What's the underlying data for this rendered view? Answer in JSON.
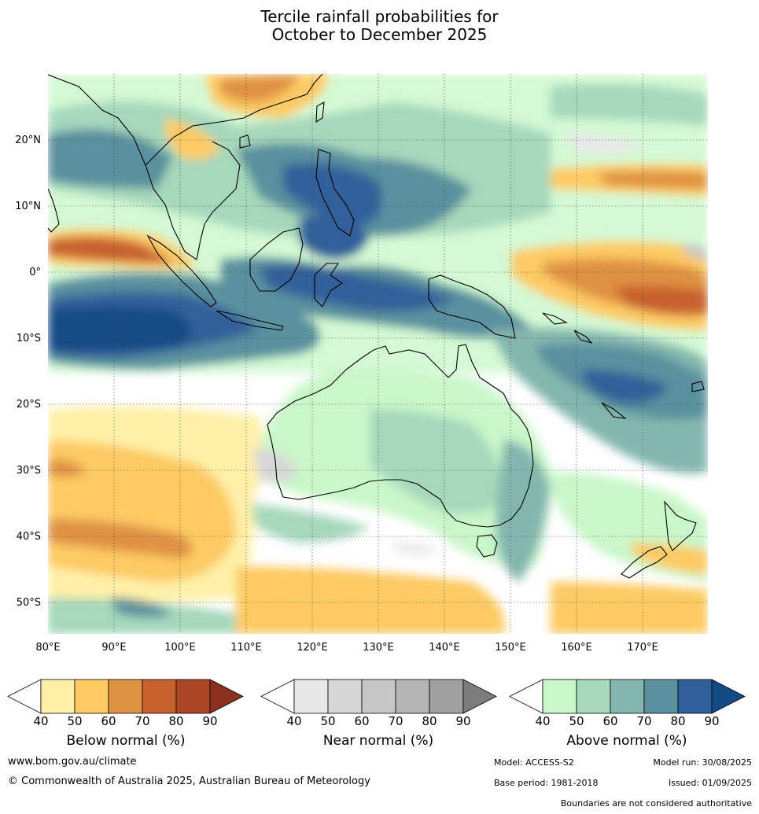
{
  "title_line1": "Tercile rainfall probabilities for",
  "title_line2": "October to December 2025",
  "lat_labels": [
    "20°N",
    "10°N",
    "0°",
    "10°S",
    "20°S",
    "30°S",
    "40°S",
    "50°S"
  ],
  "lon_labels": [
    "80°E",
    "90°E",
    "100°E",
    "110°E",
    "120°E",
    "130°E",
    "140°E",
    "150°E",
    "160°E",
    "170°E"
  ],
  "colorbars": [
    {
      "label": "Below normal (%)",
      "ticks": [
        "40",
        "50",
        "60",
        "70",
        "80",
        "90"
      ],
      "colors": [
        "#fff0a8",
        "#fdca64",
        "#df9242",
        "#c7622f",
        "#ab4526",
        "#8c2f1c"
      ]
    },
    {
      "label": "Near normal (%)",
      "ticks": [
        "40",
        "50",
        "60",
        "70",
        "80",
        "90"
      ],
      "colors": [
        "#e8e8e8",
        "#d7d7d7",
        "#c7c7c7",
        "#b4b4b4",
        "#a0a0a0",
        "#7d7d7d"
      ]
    },
    {
      "label": "Above normal (%)",
      "ticks": [
        "40",
        "50",
        "60",
        "70",
        "80",
        "90"
      ],
      "colors": [
        "#c9f7c9",
        "#a6d8bb",
        "#83b7ae",
        "#5a919f",
        "#30609a",
        "#124b86"
      ]
    }
  ],
  "footer": {
    "website": "www.bom.gov.au/climate",
    "copyright": "© Commonwealth of Australia 2025, Australian Bureau of Meteorology",
    "model": "Model: ACCESS-S2",
    "model_run": "Model run: 30/08/2025",
    "base_period": "Base period: 1981-2018",
    "issued": "Issued: 01/09/2025",
    "disclaimer": "Boundaries are not considered authoritative"
  }
}
